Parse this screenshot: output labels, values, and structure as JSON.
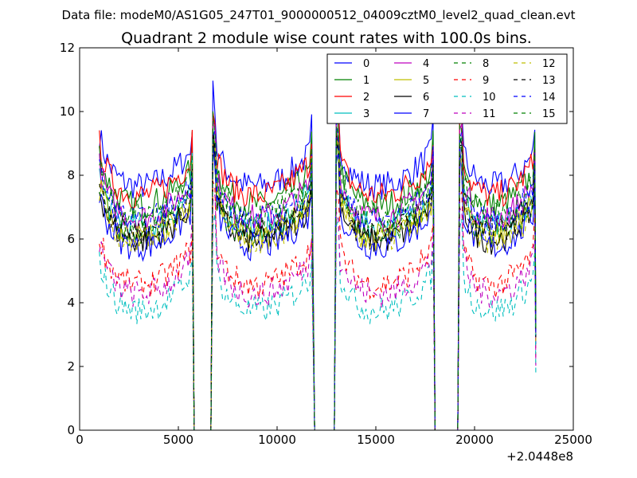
{
  "chart_data": {
    "type": "line",
    "suptitle": "Data file: modeM0/AS1G05_247T01_9000000512_04009cztM0_level2_quad_clean.evt",
    "title": "Quadrant 2 module wise count rates with 100.0s bins.",
    "xlabel": "",
    "ylabel": "",
    "x_offset_label": "+2.0448e8",
    "xlim": [
      0,
      25000
    ],
    "ylim": [
      0,
      12
    ],
    "xticks": [
      0,
      5000,
      10000,
      15000,
      20000,
      25000
    ],
    "xtick_labels": [
      "0",
      "5000",
      "10000",
      "15000",
      "20000",
      "25000"
    ],
    "yticks": [
      0,
      2,
      4,
      6,
      8,
      10,
      12
    ],
    "ytick_labels": [
      "0",
      "2",
      "4",
      "6",
      "8",
      "10",
      "12"
    ],
    "grid": false,
    "legend_position": "top-right",
    "legend_columns": 4,
    "bin_seconds": 100,
    "segments": [
      {
        "x_start": 1000,
        "x_end": 5700
      },
      {
        "x_start": 6750,
        "x_end": 11800
      },
      {
        "x_start": 13000,
        "x_end": 17900
      },
      {
        "x_start": 19250,
        "x_end": 23100
      }
    ],
    "series": [
      {
        "name": "0",
        "color": "#0000ff",
        "dashed": false,
        "level": 7.9
      },
      {
        "name": "1",
        "color": "#008000",
        "dashed": false,
        "level": 7.3
      },
      {
        "name": "2",
        "color": "#ff0000",
        "dashed": false,
        "level": 7.6
      },
      {
        "name": "3",
        "color": "#00bfbf",
        "dashed": false,
        "level": 6.6
      },
      {
        "name": "4",
        "color": "#bf00bf",
        "dashed": false,
        "level": 6.9
      },
      {
        "name": "5",
        "color": "#bfbf00",
        "dashed": false,
        "level": 6.3
      },
      {
        "name": "6",
        "color": "#000000",
        "dashed": false,
        "level": 6.2
      },
      {
        "name": "7",
        "color": "#0000ff",
        "dashed": false,
        "level": 6.0
      },
      {
        "name": "8",
        "color": "#008000",
        "dashed": true,
        "level": 6.4
      },
      {
        "name": "9",
        "color": "#ff0000",
        "dashed": true,
        "level": 4.8
      },
      {
        "name": "10",
        "color": "#00bfbf",
        "dashed": true,
        "level": 4.0
      },
      {
        "name": "11",
        "color": "#bf00bf",
        "dashed": true,
        "level": 4.5
      },
      {
        "name": "12",
        "color": "#bfbf00",
        "dashed": true,
        "level": 6.2
      },
      {
        "name": "13",
        "color": "#000000",
        "dashed": true,
        "level": 6.5
      },
      {
        "name": "14",
        "color": "#0000ff",
        "dashed": true,
        "level": 6.8
      },
      {
        "name": "15",
        "color": "#008000",
        "dashed": true,
        "level": 7.0
      }
    ]
  }
}
